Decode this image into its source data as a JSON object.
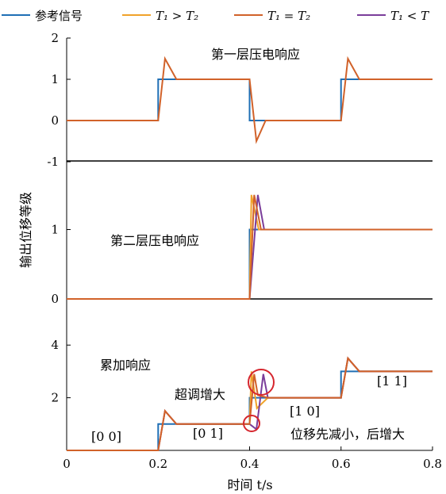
{
  "chart_data": {
    "type": "line",
    "legend": {
      "entries": [
        {
          "label": "参考信号",
          "color": "#1f6fb5"
        },
        {
          "label": "T₁ > T₂",
          "color": "#f0a22a"
        },
        {
          "label": "T₁ = T₂",
          "color": "#d1622a"
        },
        {
          "label": "T₁ < T",
          "color": "#7a3d9a"
        }
      ],
      "placement": "top"
    },
    "xlabel": "时间 t/s",
    "ylabel": "输出位移等级",
    "xlim": [
      0,
      0.8
    ],
    "xticks": [
      "0",
      "0.2",
      "0.4",
      "0.6",
      "0.8"
    ],
    "panels": [
      {
        "title": "第一层压电响应",
        "ylim": [
          -1,
          2
        ],
        "yticks": [
          "-1",
          "0",
          "1",
          "2"
        ],
        "series": [
          {
            "name": "参考信号",
            "x": [
              0,
              0.2,
              0.2,
              0.4,
              0.4,
              0.6,
              0.6,
              0.8
            ],
            "y": [
              0,
              0,
              1,
              1,
              0,
              0,
              1,
              1
            ]
          },
          {
            "name": "T₁ = T₂",
            "x": [
              0,
              0.2,
              0.215,
              0.24,
              0.4,
              0.415,
              0.435,
              0.6,
              0.615,
              0.64,
              0.8
            ],
            "y": [
              0,
              0,
              1.5,
              1,
              1,
              -0.5,
              0,
              0,
              1.5,
              1,
              1
            ]
          }
        ]
      },
      {
        "title": "第二层压电响应",
        "ylim": [
          0,
          2
        ],
        "yticks": [
          "0",
          "1"
        ],
        "series": [
          {
            "name": "参考信号",
            "x": [
              0,
              0.4,
              0.4,
              0.8
            ],
            "y": [
              0,
              0,
              1,
              1
            ]
          },
          {
            "name": "T₁ > T₂",
            "x": [
              0,
              0.4,
              0.404,
              0.42,
              0.8
            ],
            "y": [
              0,
              0,
              1.5,
              1,
              1
            ]
          },
          {
            "name": "T₁ = T₂",
            "x": [
              0,
              0.4,
              0.41,
              0.425,
              0.8
            ],
            "y": [
              0,
              0,
              1.5,
              1,
              1
            ]
          },
          {
            "name": "T₁ < T",
            "x": [
              0,
              0.4,
              0.418,
              0.432,
              0.8
            ],
            "y": [
              0,
              0,
              1.5,
              1,
              1
            ]
          }
        ]
      },
      {
        "title": "累加响应",
        "ylim": [
          0,
          4
        ],
        "yticks": [
          "2",
          "4"
        ],
        "series": [
          {
            "name": "参考信号",
            "x": [
              0,
              0.2,
              0.2,
              0.4,
              0.4,
              0.6,
              0.6,
              0.8
            ],
            "y": [
              0,
              0,
              1,
              1,
              2,
              2,
              3,
              3
            ]
          },
          {
            "name": "T₁ > T₂",
            "x": [
              0,
              0.2,
              0.215,
              0.24,
              0.4,
              0.404,
              0.416,
              0.44,
              0.6,
              0.615,
              0.64,
              0.8
            ],
            "y": [
              0,
              0,
              1.5,
              1,
              1,
              3,
              1.6,
              2,
              2,
              3.5,
              3,
              3
            ]
          },
          {
            "name": "T₁ = T₂",
            "x": [
              0,
              0.2,
              0.215,
              0.24,
              0.4,
              0.41,
              0.418,
              0.44,
              0.6,
              0.615,
              0.64,
              0.8
            ],
            "y": [
              0,
              0,
              1.5,
              1,
              1,
              2.9,
              2.1,
              2,
              2,
              3.5,
              3,
              3
            ]
          },
          {
            "name": "T₁ < T",
            "x": [
              0,
              0.2,
              0.215,
              0.24,
              0.4,
              0.415,
              0.43,
              0.44,
              0.6,
              0.615,
              0.64,
              0.8
            ],
            "y": [
              0,
              0,
              1.5,
              1,
              1,
              0.8,
              2.9,
              2,
              2,
              3.5,
              3,
              3
            ]
          }
        ],
        "annotations": [
          "[0 0]",
          "[0 1]",
          "[1 0]",
          "[1 1]",
          "超调增大",
          "位移先减小，后增大"
        ]
      }
    ]
  }
}
